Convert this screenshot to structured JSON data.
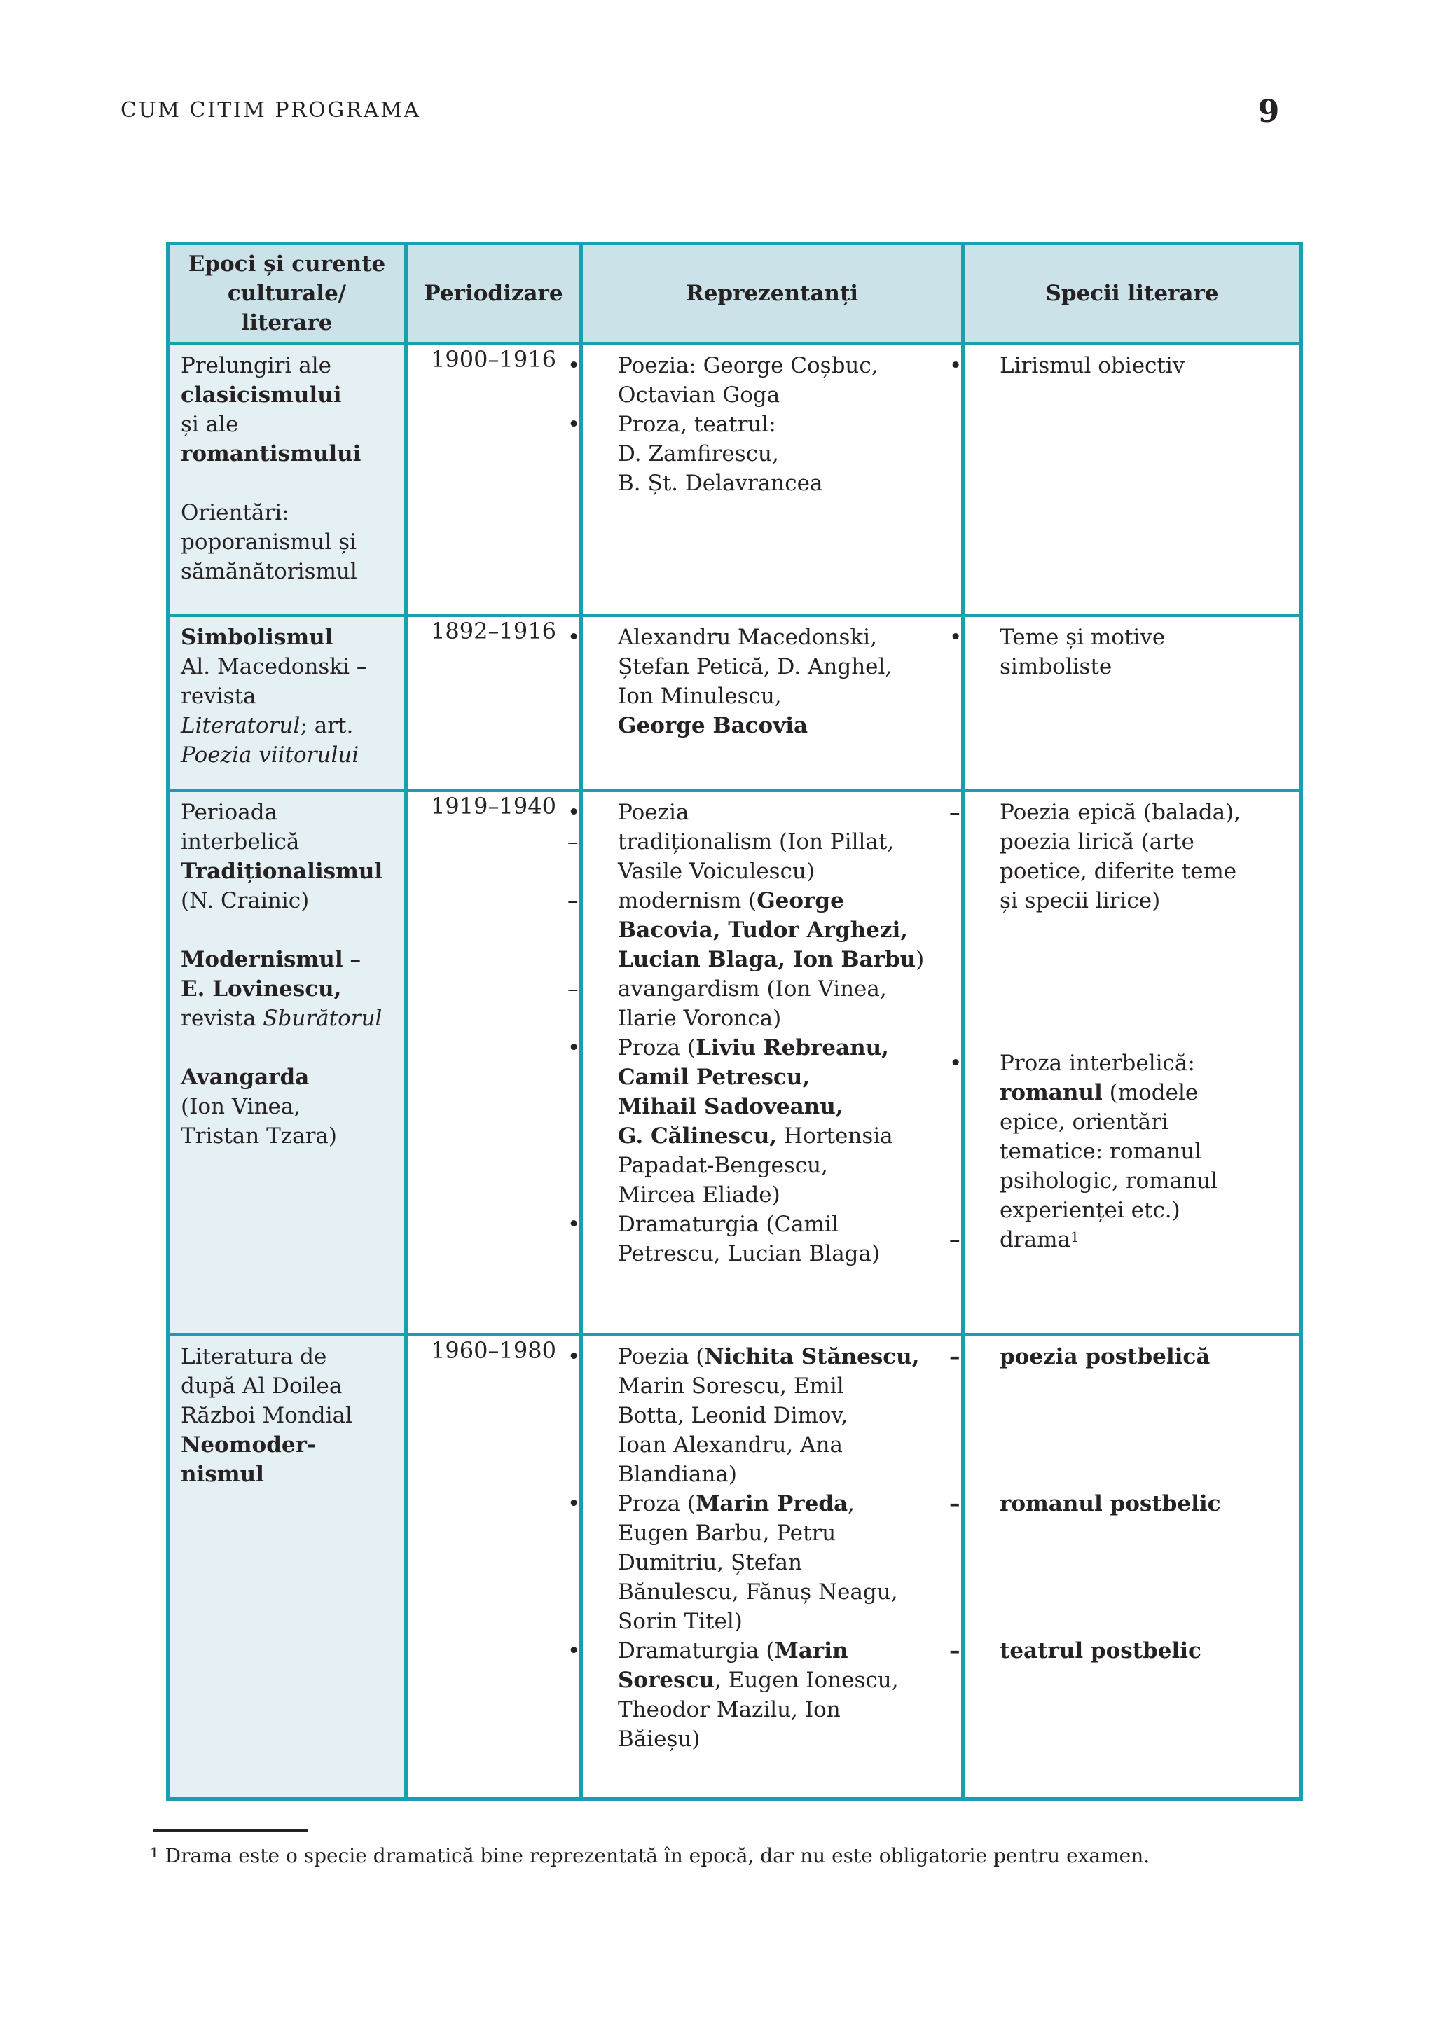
{
  "page": {
    "running_head": "CUM CITIM PROGRAMA",
    "page_number": "9"
  },
  "colors": {
    "border_teal": "#1a9faf",
    "header_bg": "#cbe2e9",
    "epoch_bg": "#e4f0f4",
    "text": "#262122"
  },
  "table": {
    "headers": [
      {
        "lines": [
          "Epoci și curente",
          "culturale/",
          "literare"
        ]
      },
      {
        "lines": [
          "Periodizare"
        ]
      },
      {
        "lines": [
          "Reprezentanți"
        ]
      },
      {
        "lines": [
          "Specii literare"
        ]
      }
    ],
    "rows": [
      {
        "epoch": {
          "lines": [
            [
              {
                "t": "Prelungiri ale"
              }
            ],
            [
              {
                "t": "clasicismului",
                "b": true
              }
            ],
            [
              {
                "t": "și ale"
              }
            ],
            [
              {
                "t": "romantismului",
                "b": true
              }
            ],
            [],
            [
              {
                "t": "Orientări:"
              }
            ],
            [
              {
                "t": "poporanismul și"
              }
            ],
            [
              {
                "t": "sămănătorismul"
              }
            ]
          ]
        },
        "period": "1900–1916",
        "representatives": {
          "paras": [
            {
              "m": "•",
              "lines": [
                [
                  {
                    "t": "Poezia: George Coșbuc,"
                  }
                ],
                [
                  {
                    "t": "Octavian Goga"
                  }
                ]
              ]
            },
            {
              "m": "•",
              "lines": [
                [
                  {
                    "t": "Proza, teatrul:"
                  }
                ],
                [
                  {
                    "t": "D. Zamfirescu,"
                  }
                ],
                [
                  {
                    "t": "B. Șt. Delavrancea"
                  }
                ]
              ]
            }
          ]
        },
        "species": {
          "paras": [
            {
              "m": "•",
              "lines": [
                [
                  {
                    "t": "Lirismul obiectiv"
                  }
                ]
              ]
            }
          ]
        }
      },
      {
        "epoch": {
          "lines": [
            [
              {
                "t": "Simbolismul",
                "b": true
              }
            ],
            [
              {
                "t": "Al. Macedonski –"
              }
            ],
            [
              {
                "t": "revista"
              }
            ],
            [
              {
                "t": "Literatorul",
                "i": true
              },
              {
                "t": "; art."
              }
            ],
            [
              {
                "t": "Poezia viitorului",
                "i": true
              }
            ]
          ]
        },
        "period": "1892–1916",
        "representatives": {
          "paras": [
            {
              "m": "•",
              "lines": [
                [
                  {
                    "t": "Alexandru Macedonski,"
                  }
                ],
                [
                  {
                    "t": "Ștefan Petică, D. Anghel,"
                  }
                ],
                [
                  {
                    "t": "Ion Minulescu,"
                  }
                ],
                [
                  {
                    "t": "George Bacovia",
                    "b": true
                  }
                ]
              ]
            }
          ]
        },
        "species": {
          "paras": [
            {
              "m": "•",
              "lines": [
                [
                  {
                    "t": "Teme și motive"
                  }
                ],
                [
                  {
                    "t": "simboliste"
                  }
                ]
              ]
            }
          ]
        }
      },
      {
        "epoch": {
          "lines": [
            [
              {
                "t": "Perioada"
              }
            ],
            [
              {
                "t": "interbelică"
              }
            ],
            [
              {
                "t": "Tradiționalismul",
                "b": true
              }
            ],
            [
              {
                "t": "(N. Crainic)"
              }
            ],
            [],
            [
              {
                "t": "Modernismul",
                "b": true
              },
              {
                "t": " –"
              }
            ],
            [
              {
                "t": "E. Lovinescu,",
                "b": true
              }
            ],
            [
              {
                "t": "revista "
              },
              {
                "t": "Sburătorul",
                "i": true
              }
            ],
            [],
            [
              {
                "t": "Avangarda",
                "b": true
              }
            ],
            [
              {
                "t": "(Ion Vinea,"
              }
            ],
            [
              {
                "t": "Tristan Tzara)"
              }
            ]
          ]
        },
        "period": "1919–1940",
        "representatives": {
          "paras": [
            {
              "m": "•",
              "lines": [
                [
                  {
                    "t": "Poezia"
                  }
                ]
              ]
            },
            {
              "m": "–",
              "lines": [
                [
                  {
                    "t": "tradiționalism (Ion Pillat,"
                  }
                ],
                [
                  {
                    "t": "Vasile Voiculescu)"
                  }
                ]
              ]
            },
            {
              "m": "–",
              "lines": [
                [
                  {
                    "t": "modernism ("
                  },
                  {
                    "t": "George",
                    "b": true
                  }
                ],
                [
                  {
                    "t": "Bacovia, Tudor Arghezi,",
                    "b": true
                  }
                ],
                [
                  {
                    "t": "Lucian Blaga, Ion Barbu",
                    "b": true
                  },
                  {
                    "t": ")"
                  }
                ]
              ]
            },
            {
              "m": "–",
              "lines": [
                [
                  {
                    "t": "avangardism (Ion Vinea,"
                  }
                ],
                [
                  {
                    "t": "Ilarie Voronca)"
                  }
                ]
              ]
            },
            {
              "m": "•",
              "lines": [
                [
                  {
                    "t": "Proza ("
                  },
                  {
                    "t": "Liviu Rebreanu,",
                    "b": true
                  }
                ],
                [
                  {
                    "t": "Camil Petrescu,",
                    "b": true
                  }
                ],
                [
                  {
                    "t": "Mihail Sadoveanu,",
                    "b": true
                  }
                ],
                [
                  {
                    "t": "G. Călinescu,",
                    "b": true
                  },
                  {
                    "t": " Hortensia"
                  }
                ],
                [
                  {
                    "t": "Papadat-Bengescu,"
                  }
                ],
                [
                  {
                    "t": "Mircea Eliade)"
                  }
                ]
              ]
            },
            {
              "m": "•",
              "lines": [
                [
                  {
                    "t": "Dramaturgia (Camil"
                  }
                ],
                [
                  {
                    "t": "Petrescu, Lucian Blaga)"
                  }
                ]
              ]
            }
          ]
        },
        "species": {
          "paras": [
            {
              "m": "–",
              "lines": [
                [
                  {
                    "t": "Poezia epică (balada),"
                  }
                ],
                [
                  {
                    "t": "poezia lirică (arte"
                  }
                ],
                [
                  {
                    "t": "poetice, diferite teme"
                  }
                ],
                [
                  {
                    "t": "și specii lirice)"
                  }
                ]
              ]
            },
            {
              "m": "•",
              "gap": 190,
              "lines": [
                [
                  {
                    "t": "Proza interbelică:"
                  }
                ],
                [
                  {
                    "t": "romanul",
                    "b": true
                  },
                  {
                    "t": " (modele"
                  }
                ],
                [
                  {
                    "t": "epice, orientări"
                  }
                ],
                [
                  {
                    "t": "tematice: romanul"
                  }
                ],
                [
                  {
                    "t": "psihologic, romanul"
                  }
                ],
                [
                  {
                    "t": "experienței etc.)"
                  }
                ]
              ]
            },
            {
              "m": "–",
              "lines": [
                [
                  {
                    "t": "drama"
                  },
                  {
                    "t": "1",
                    "sup": true
                  }
                ]
              ]
            }
          ]
        }
      },
      {
        "epoch": {
          "lines": [
            [
              {
                "t": "Literatura de"
              }
            ],
            [
              {
                "t": "după Al Doilea"
              }
            ],
            [
              {
                "t": "Război Mondial"
              }
            ],
            [
              {
                "t": "Neomoder-",
                "b": true
              }
            ],
            [
              {
                "t": "nismul",
                "b": true
              }
            ]
          ]
        },
        "period": "1960–1980",
        "representatives": {
          "paras": [
            {
              "m": "•",
              "lines": [
                [
                  {
                    "t": "Poezia ("
                  },
                  {
                    "t": "Nichita Stănescu,",
                    "b": true
                  }
                ],
                [
                  {
                    "t": "Marin Sorescu, Emil"
                  }
                ],
                [
                  {
                    "t": "Botta, Leonid Dimov,"
                  }
                ],
                [
                  {
                    "t": "Ioan Alexandru, Ana"
                  }
                ],
                [
                  {
                    "t": "Blandiana)"
                  }
                ]
              ]
            },
            {
              "m": "•",
              "lines": [
                [
                  {
                    "t": "Proza ("
                  },
                  {
                    "t": "Marin Preda",
                    "b": true
                  },
                  {
                    "t": ","
                  }
                ],
                [
                  {
                    "t": "Eugen Barbu, Petru"
                  }
                ],
                [
                  {
                    "t": "Dumitriu, Ștefan"
                  }
                ],
                [
                  {
                    "t": "Bănulescu, Fănuș Neagu,"
                  }
                ],
                [
                  {
                    "t": "Sorin Titel)"
                  }
                ]
              ]
            },
            {
              "m": "•",
              "lines": [
                [
                  {
                    "t": "Dramaturgia ("
                  },
                  {
                    "t": "Marin",
                    "b": true
                  }
                ],
                [
                  {
                    "t": "Sorescu",
                    "b": true
                  },
                  {
                    "t": ", Eugen Ionescu,"
                  }
                ],
                [
                  {
                    "t": "Theodor Mazilu, Ion"
                  }
                ],
                [
                  {
                    "t": "Băieșu)"
                  }
                ]
              ]
            }
          ]
        },
        "species": {
          "paras": [
            {
              "m": "–",
              "mb": true,
              "lines": [
                [
                  {
                    "t": "poezia postbelică",
                    "b": true
                  }
                ]
              ]
            },
            {
              "m": "–",
              "mb": true,
              "gap": 168,
              "lines": [
                [
                  {
                    "t": "romanul postbelic",
                    "b": true
                  }
                ]
              ]
            },
            {
              "m": "–",
              "mb": true,
              "gap": 168,
              "lines": [
                [
                  {
                    "t": "teatrul postbelic",
                    "b": true
                  }
                ]
              ]
            }
          ]
        }
      }
    ]
  },
  "footnote": {
    "segments": [
      {
        "t": "1",
        "sup": true
      },
      {
        "t": " Drama este o specie dramatică bine reprezentată în epocă, dar nu este obligatorie pentru examen."
      }
    ]
  }
}
